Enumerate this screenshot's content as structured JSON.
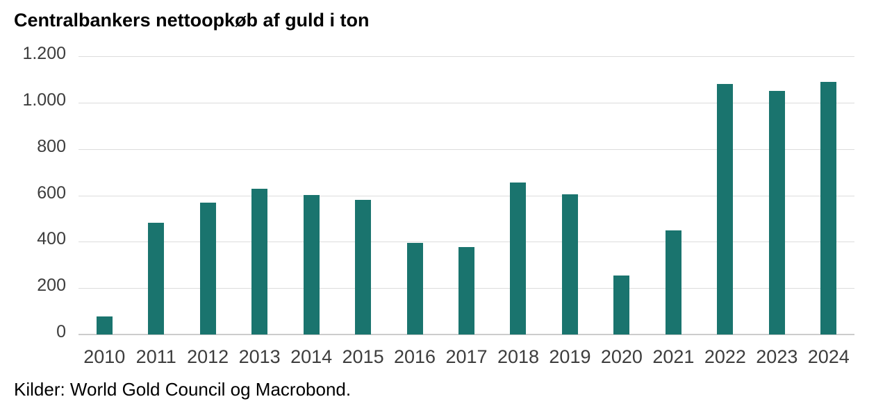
{
  "title": "Centralbankers nettoopkøb af guld i ton",
  "source": "Kilder: World Gold Council og Macrobond.",
  "colors": {
    "bar": "#1a746e",
    "gridline": "#dcdcdc",
    "axis_line": "#cccccc",
    "title_text": "#000000",
    "axis_text": "#3d3d3d",
    "background": "#ffffff"
  },
  "chart_data": {
    "type": "bar",
    "title": "Centralbankers nettoopkøb af guld i ton",
    "categories": [
      "2010",
      "2011",
      "2012",
      "2013",
      "2014",
      "2015",
      "2016",
      "2017",
      "2018",
      "2019",
      "2020",
      "2021",
      "2022",
      "2023",
      "2024"
    ],
    "values": [
      79,
      481,
      569,
      629,
      601,
      580,
      394,
      378,
      655,
      605,
      253,
      448,
      1080,
      1050,
      1090
    ],
    "xlabel": "",
    "ylabel": "",
    "ylim": [
      0,
      1200
    ],
    "ytick_values": [
      1200,
      1000,
      800,
      600,
      400,
      200,
      0
    ],
    "ytick_labels": [
      "1.200",
      "1.000",
      "800",
      "600",
      "400",
      "200",
      "0"
    ],
    "grid": true,
    "legend": "none",
    "source_note": "Kilder: World Gold Council og Macrobond."
  }
}
